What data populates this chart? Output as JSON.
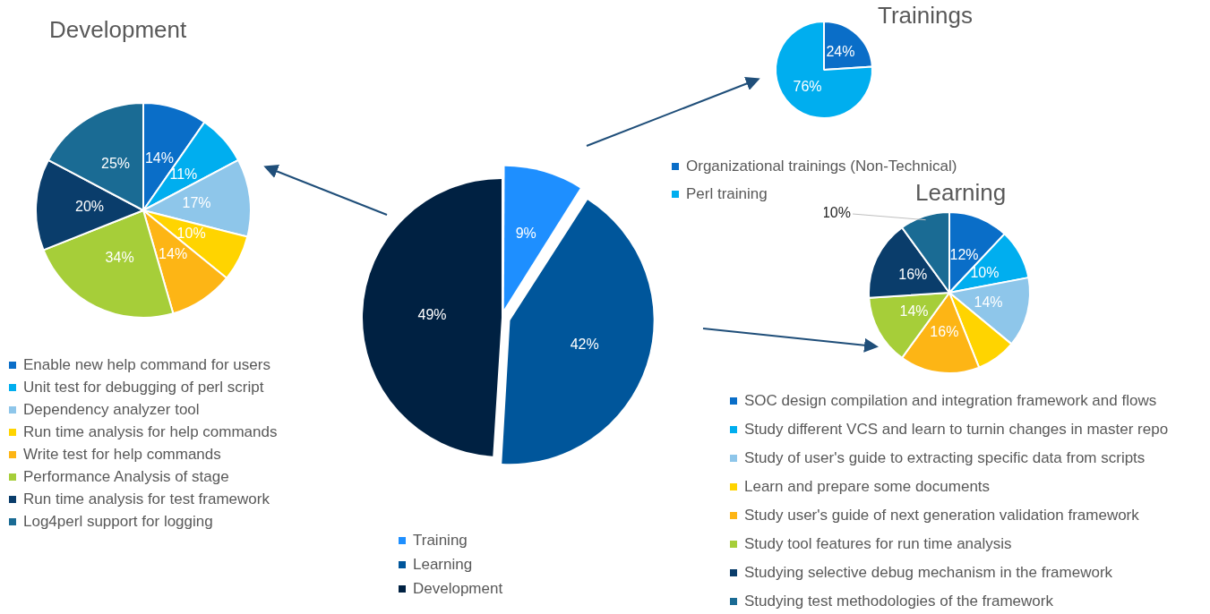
{
  "chart_data": [
    {
      "type": "pie",
      "title": "Development",
      "legend": "bottom",
      "categories": [
        "Enable new help command for users",
        "Unit test for debugging of perl script",
        "Dependency analyzer tool",
        "Run time analysis for help commands",
        "Write test for help commands",
        "Performance Analysis of stage",
        "Run time analysis for test framework",
        "Log4perl support for logging"
      ],
      "values": [
        14,
        11,
        17,
        10,
        14,
        34,
        20,
        25
      ],
      "value_labels": [
        "14%",
        "11%",
        "17%",
        "10%",
        "14%",
        "34%",
        "20%",
        "25%"
      ],
      "colors": [
        "#0a6ec8",
        "#00aeef",
        "#8ec6ea",
        "#ffd400",
        "#fdb515",
        "#a6ce39",
        "#0a3d6b",
        "#1a6b94"
      ]
    },
    {
      "type": "pie",
      "title": "Trainings",
      "legend": "bottom",
      "categories": [
        "Organizational trainings (Non-Technical)",
        "Perl training"
      ],
      "values": [
        24,
        76
      ],
      "value_labels": [
        "24%",
        "76%"
      ],
      "colors": [
        "#0a6ec8",
        "#00aeef"
      ]
    },
    {
      "type": "pie",
      "legend": "bottom",
      "categories": [
        "Training",
        "Learning",
        "Development"
      ],
      "values": [
        9,
        42,
        49
      ],
      "value_labels": [
        "9%",
        "42%",
        "49%"
      ],
      "colors": [
        "#1e8fff",
        "#00569b",
        "#002142"
      ]
    },
    {
      "type": "pie",
      "title": "Learning",
      "legend": "bottom",
      "categories": [
        "SOC design compilation and integration framework and flows",
        "Study different VCS and learn to turnin changes in master repo",
        "Study of user's guide to extracting specific data from scripts",
        "Learn and prepare some documents",
        "Study user's guide of next generation validation framework",
        "Study tool features for run time analysis",
        "Studying selective debug mechanism in the framework",
        "Studying test methodologies of the framework"
      ],
      "values": [
        12,
        10,
        14,
        8,
        16,
        14,
        16,
        10
      ],
      "value_labels": [
        "12%",
        "10%",
        "14%",
        null,
        "16%",
        "14%",
        "16%",
        "10%"
      ],
      "colors": [
        "#0a6ec8",
        "#00aeef",
        "#8ec6ea",
        "#ffd400",
        "#fdb515",
        "#a6ce39",
        "#0a3d6b",
        "#1a6b94"
      ]
    }
  ]
}
